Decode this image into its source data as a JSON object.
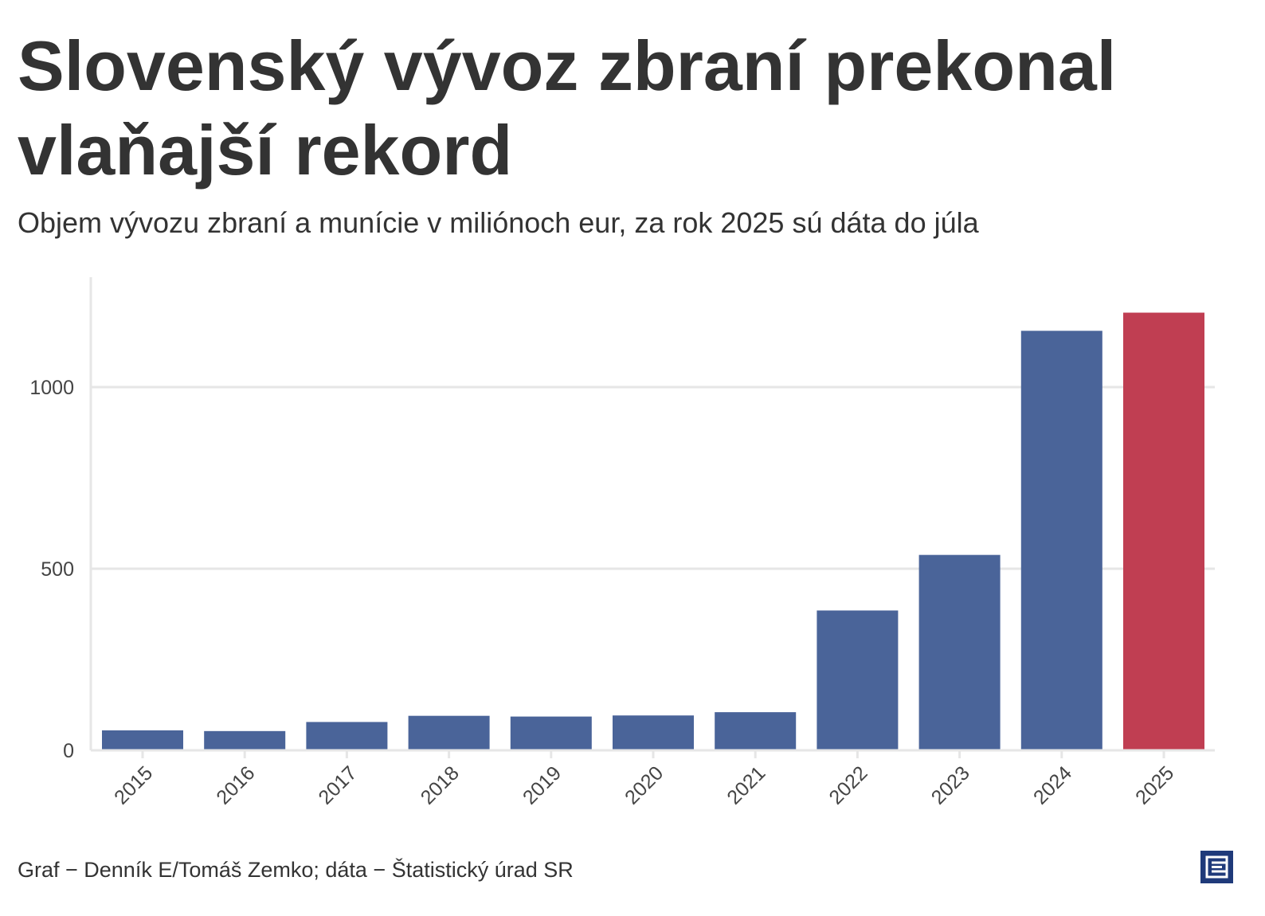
{
  "title": "Slovenský vývoz zbraní prekonal vlaňajší rekord",
  "subtitle": "Objem vývozu zbraní a munície v miliónoch eur, za rok 2025 sú dáta do júla",
  "source": "Graf − Denník E/Tomáš Zemko; dáta − Štatistický úrad SR",
  "logo_icon": "denník-e-logo-icon",
  "colors": {
    "bar_default": "#4a6499",
    "bar_highlight": "#c03e52",
    "grid": "#e6e6e6",
    "text": "#333333",
    "logo": "#1f3a7a"
  },
  "chart_data": {
    "type": "bar",
    "categories": [
      "2015",
      "2016",
      "2017",
      "2018",
      "2019",
      "2020",
      "2021",
      "2022",
      "2023",
      "2024",
      "2025"
    ],
    "values": [
      55,
      53,
      78,
      95,
      93,
      96,
      105,
      385,
      538,
      1155,
      1205
    ],
    "highlight_category": "2025",
    "title": "",
    "xlabel": "",
    "ylabel": "",
    "ylim": [
      0,
      1300
    ],
    "yticks": [
      0,
      500,
      1000
    ],
    "grid": true,
    "legend": "none"
  }
}
